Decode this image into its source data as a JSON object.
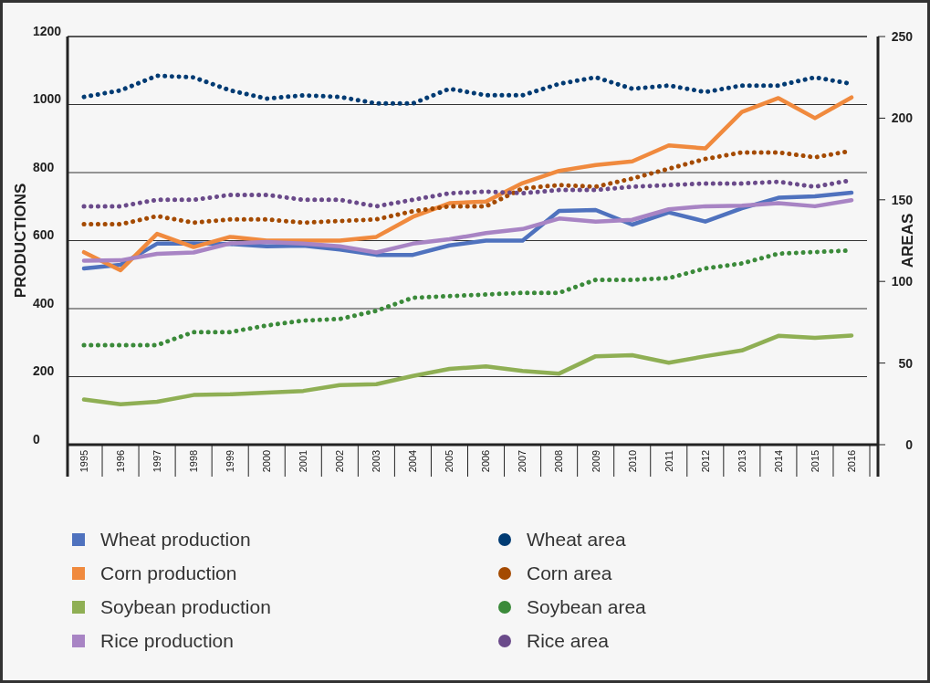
{
  "chart_data": {
    "type": "line",
    "categories": [
      "1995",
      "1996",
      "1997",
      "1998",
      "1999",
      "2000",
      "2001",
      "2002",
      "2003",
      "2004",
      "2005",
      "2006",
      "2007",
      "2008",
      "2009",
      "2010",
      "2011",
      "2012",
      "2013",
      "2014",
      "2015",
      "2016"
    ],
    "ylabel": "PRODUCTIONS",
    "y2label": "AREAS",
    "ylim": [
      0,
      1200
    ],
    "yticks": [
      0,
      200,
      400,
      600,
      800,
      1000,
      1200
    ],
    "y2lim": [
      0,
      250
    ],
    "y2ticks": [
      0,
      50,
      100,
      150,
      200,
      250
    ],
    "grid": "y",
    "legend": "bottom",
    "series": [
      {
        "name": "Wheat production",
        "color": "#4f72be",
        "line_style": "solid",
        "values": [
          518,
          529,
          591,
          592,
          590,
          583,
          585,
          574,
          558,
          558,
          586,
          600,
          600,
          687,
          690,
          647,
          683,
          656,
          695,
          726,
          730,
          741
        ]
      },
      {
        "name": "Corn production",
        "color": "#f08a3e",
        "line_style": "solid",
        "values": [
          566,
          513,
          620,
          581,
          611,
          600,
          600,
          600,
          611,
          670,
          710,
          715,
          769,
          805,
          822,
          833,
          880,
          871,
          978,
          1019,
          960,
          1021
        ]
      },
      {
        "name": "Soybean production",
        "color": "#8faf54",
        "line_style": "solid",
        "values": [
          133,
          119,
          126,
          146,
          148,
          153,
          158,
          175,
          178,
          202,
          223,
          230,
          217,
          209,
          260,
          263,
          241,
          260,
          277,
          320,
          314,
          321
        ]
      },
      {
        "name": "Rice production",
        "color": "#a884c4",
        "line_style": "solid",
        "values": [
          541,
          542,
          561,
          565,
          592,
          596,
          591,
          583,
          565,
          591,
          604,
          622,
          634,
          665,
          656,
          661,
          692,
          701,
          703,
          710,
          701,
          719
        ]
      },
      {
        "name": "Wheat area",
        "color": "#003b73",
        "line_style": "dotted",
        "axis": "y2",
        "values": [
          213,
          217,
          226,
          225,
          217,
          212,
          214,
          213,
          209,
          209,
          218,
          214,
          214,
          221,
          225,
          218,
          220,
          216,
          220,
          220,
          225,
          221
        ]
      },
      {
        "name": "Corn area",
        "color": "#a44a00",
        "line_style": "dotted",
        "axis": "y2",
        "values": [
          135,
          135,
          140,
          136,
          138,
          138,
          136,
          137,
          138,
          143,
          146,
          146,
          157,
          159,
          158,
          163,
          169,
          175,
          179,
          179,
          176,
          180
        ]
      },
      {
        "name": "Soybean area",
        "color": "#3b8a3a",
        "line_style": "dotted",
        "axis": "y2",
        "values": [
          61,
          61,
          61,
          69,
          69,
          73,
          76,
          77,
          82,
          90,
          91,
          92,
          93,
          93,
          101,
          101,
          102,
          108,
          111,
          117,
          118,
          119
        ]
      },
      {
        "name": "Rice area",
        "color": "#6a4a8a",
        "line_style": "dotted",
        "axis": "y2",
        "values": [
          146,
          146,
          150,
          150,
          153,
          153,
          150,
          150,
          146,
          150,
          154,
          155,
          154,
          156,
          156,
          158,
          159,
          160,
          160,
          161,
          158,
          162
        ]
      }
    ]
  }
}
